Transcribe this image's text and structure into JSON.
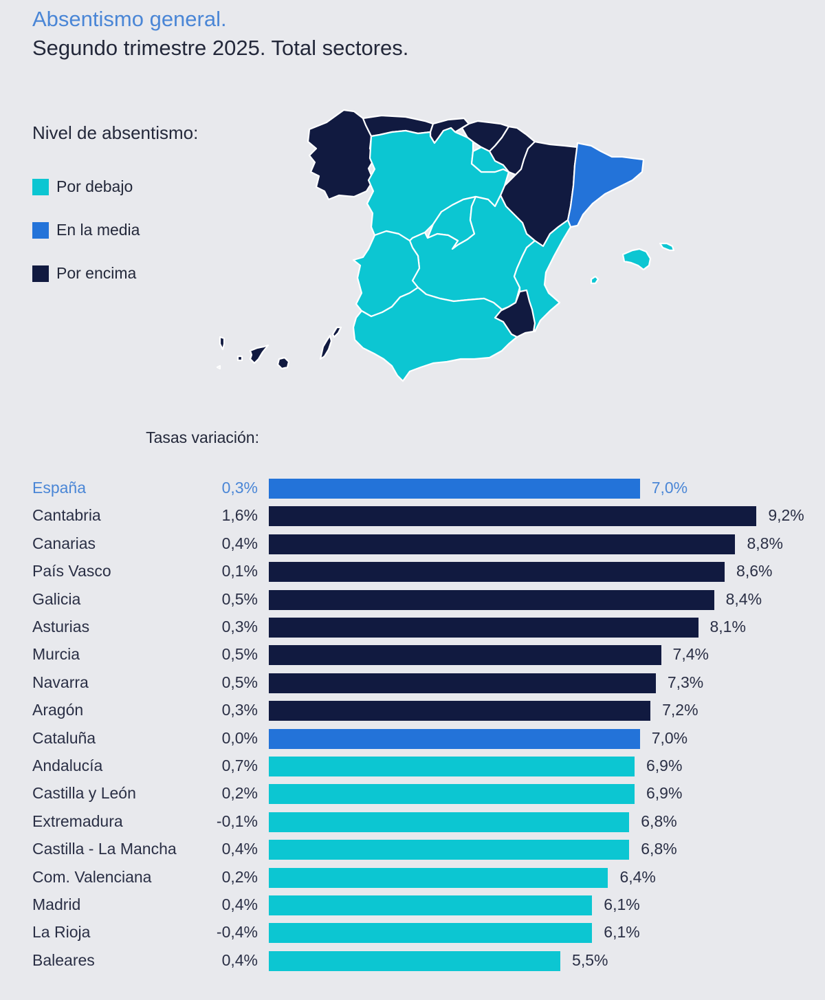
{
  "header": {
    "title": "Absentismo general.",
    "subtitle": "Segundo trimestre 2025. Total sectores."
  },
  "legend": {
    "title": "Nivel de absentismo:",
    "items": [
      {
        "key": "below",
        "label": "Por debajo",
        "color": "#0cc6d2"
      },
      {
        "key": "average",
        "label": "En la media",
        "color": "#2373d9"
      },
      {
        "key": "above",
        "label": "Por encima",
        "color": "#111a40"
      }
    ]
  },
  "colors": {
    "below": "#0cc6d2",
    "average": "#2373d9",
    "above": "#111a40",
    "highlight_text": "#4a86d6",
    "background": "#e8e9ed"
  },
  "map": {
    "regions": [
      {
        "name": "Galicia",
        "level": "above"
      },
      {
        "name": "Asturias",
        "level": "above"
      },
      {
        "name": "Cantabria",
        "level": "above"
      },
      {
        "name": "País Vasco",
        "level": "above"
      },
      {
        "name": "Navarra",
        "level": "above"
      },
      {
        "name": "Aragón",
        "level": "above"
      },
      {
        "name": "Cataluña",
        "level": "average"
      },
      {
        "name": "Castilla y León",
        "level": "below"
      },
      {
        "name": "La Rioja",
        "level": "below"
      },
      {
        "name": "Madrid",
        "level": "below"
      },
      {
        "name": "Castilla - La Mancha",
        "level": "below"
      },
      {
        "name": "Extremadura",
        "level": "below"
      },
      {
        "name": "Com. Valenciana",
        "level": "below"
      },
      {
        "name": "Murcia",
        "level": "above"
      },
      {
        "name": "Andalucía",
        "level": "below"
      },
      {
        "name": "Baleares",
        "level": "below"
      },
      {
        "name": "Canarias",
        "level": "above"
      }
    ]
  },
  "chart_data": {
    "type": "bar",
    "orientation": "horizontal",
    "title": "Absentismo general. Segundo trimestre 2025. Total sectores.",
    "column_header": "Tasas variación:",
    "value_unit": "%",
    "xlim": [
      0,
      9.2
    ],
    "grid": false,
    "categories": [
      "España",
      "Cantabria",
      "Canarias",
      "País Vasco",
      "Galicia",
      "Asturias",
      "Murcia",
      "Navarra",
      "Aragón",
      "Cataluña",
      "Andalucía",
      "Castilla y León",
      "Extremadura",
      "Castilla - La Mancha",
      "Com. Valenciana",
      "Madrid",
      "La Rioja",
      "Baleares"
    ],
    "values": [
      7.0,
      9.2,
      8.8,
      8.6,
      8.4,
      8.1,
      7.4,
      7.3,
      7.2,
      7.0,
      6.9,
      6.9,
      6.8,
      6.8,
      6.4,
      6.1,
      6.1,
      5.5
    ],
    "value_labels": [
      "7,0%",
      "9,2%",
      "8,8%",
      "8,6%",
      "8,4%",
      "8,1%",
      "7,4%",
      "7,3%",
      "7,2%",
      "7,0%",
      "6,9%",
      "6,9%",
      "6,8%",
      "6,8%",
      "6,4%",
      "6,1%",
      "6,1%",
      "5,5%"
    ],
    "variation_labels": [
      "0,3%",
      "1,6%",
      "0,4%",
      "0,1%",
      "0,5%",
      "0,3%",
      "0,5%",
      "0,5%",
      "0,3%",
      "0,0%",
      "0,7%",
      "0,2%",
      "-0,1%",
      "0,4%",
      "0,2%",
      "0,4%",
      "-0,4%",
      "0,4%"
    ],
    "variation": [
      0.3,
      1.6,
      0.4,
      0.1,
      0.5,
      0.3,
      0.5,
      0.5,
      0.3,
      0.0,
      0.7,
      0.2,
      -0.1,
      0.4,
      0.2,
      0.4,
      -0.4,
      0.4
    ],
    "levels": [
      "average",
      "above",
      "above",
      "above",
      "above",
      "above",
      "above",
      "above",
      "above",
      "average",
      "below",
      "below",
      "below",
      "below",
      "below",
      "below",
      "below",
      "below"
    ],
    "highlight_index": 0
  }
}
